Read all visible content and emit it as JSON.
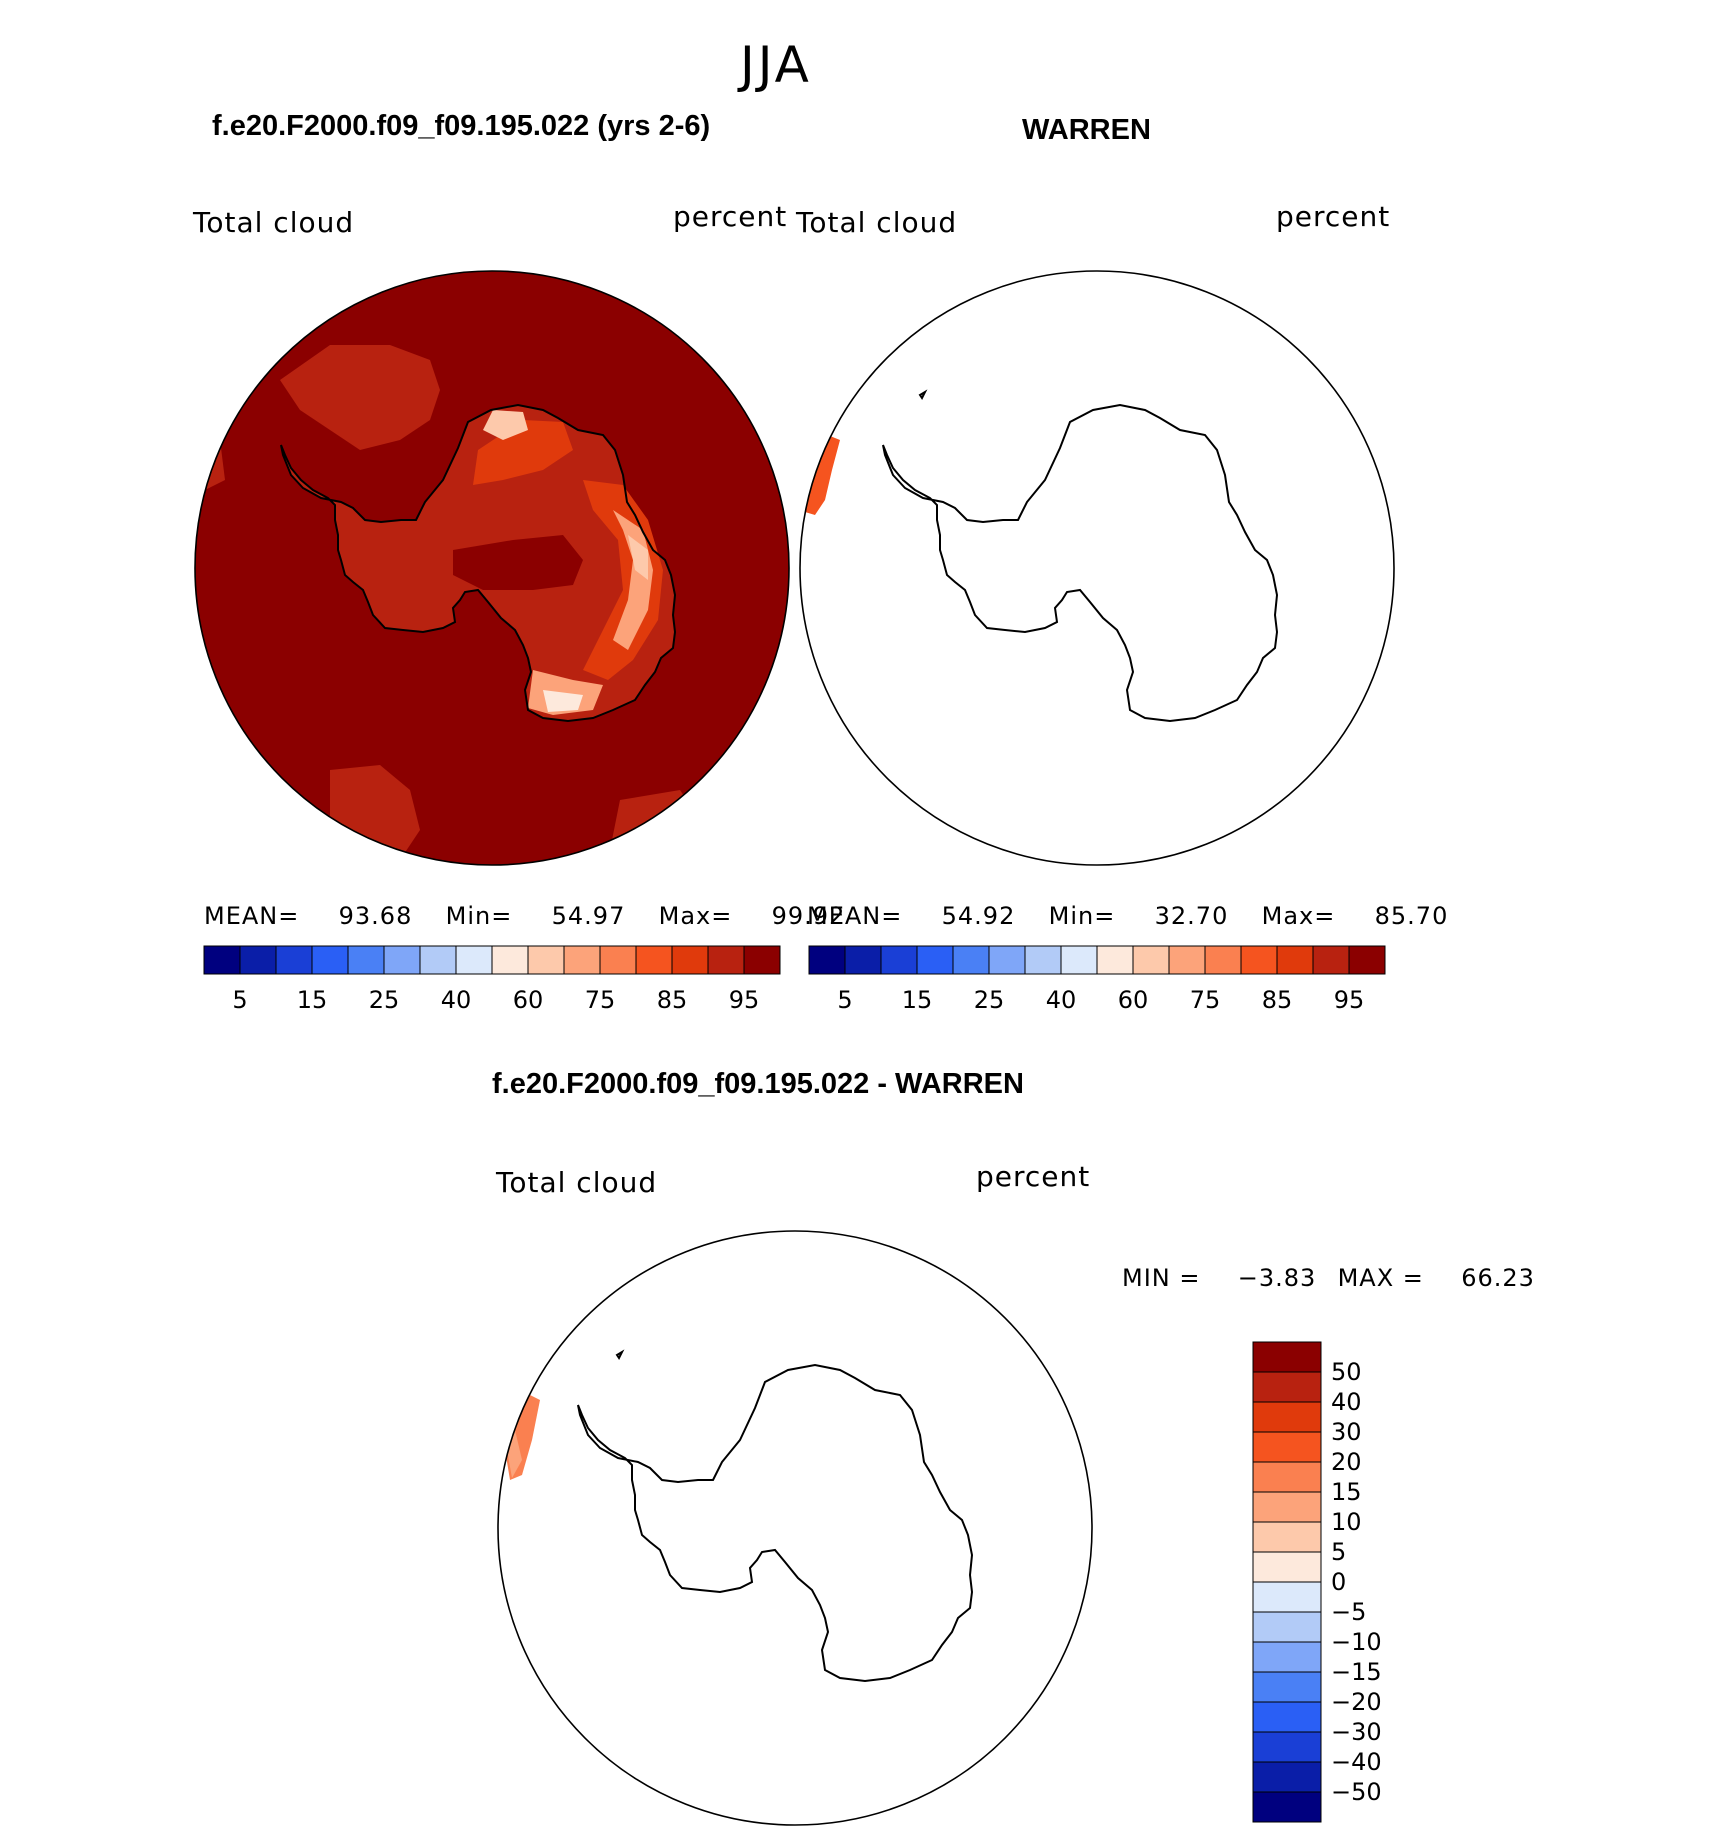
{
  "season": "JJA",
  "panels": [
    {
      "title": "f.e20.F2000.f09_f09.195.022 (yrs 2-6)",
      "variable": "Total cloud",
      "units": "percent",
      "stats": {
        "mean_label": "MEAN=",
        "mean": "93.68",
        "min_label": "Min=",
        "min": "54.97",
        "max_label": "Max=",
        "max": "99.92"
      }
    },
    {
      "title": "WARREN",
      "variable": "Total cloud",
      "units": "percent",
      "stats": {
        "mean_label": "MEAN=",
        "mean": "54.92",
        "min_label": "Min=",
        "min": "32.70",
        "max_label": "Max=",
        "max": "85.70"
      }
    },
    {
      "title": "f.e20.F2000.f09_f09.195.022 - WARREN",
      "variable": "Total cloud",
      "units": "percent",
      "stats": {
        "min_label": "MIN =",
        "min": "−3.83",
        "max_label": "MAX =",
        "max": "66.23"
      }
    }
  ],
  "abs_colorbar": {
    "colors": [
      "#00007f",
      "#0a1ea8",
      "#1a3fd6",
      "#2a5ff5",
      "#4a80f5",
      "#7fa6f8",
      "#b2cbf7",
      "#dce9fb",
      "#fde9dc",
      "#fdc9ab",
      "#fca37a",
      "#fa8050",
      "#f5541f",
      "#e03a0c",
      "#b82210",
      "#8b0000"
    ],
    "labels": [
      "5",
      "15",
      "25",
      "40",
      "60",
      "75",
      "85",
      "95"
    ]
  },
  "diff_colorbar": {
    "colors": [
      "#8b0000",
      "#b82210",
      "#e03a0c",
      "#f5541f",
      "#fa8050",
      "#fca37a",
      "#fdc9ab",
      "#fde9dc",
      "#dce9fb",
      "#b2cbf7",
      "#7fa6f8",
      "#4a80f5",
      "#2a5ff5",
      "#1a3fd6",
      "#0a1ea8",
      "#00007f"
    ],
    "labels": [
      "50",
      "40",
      "30",
      "20",
      "15",
      "10",
      "5",
      "0",
      "−5",
      "−10",
      "−15",
      "−20",
      "−30",
      "−40",
      "−50"
    ]
  },
  "map_colors": {
    "ocean_dark": "#8b0000",
    "mid": "#b82210",
    "orange": "#e03a0c",
    "light": "#fca37a",
    "lighter": "#fdc9ab",
    "palest": "#fde9dc",
    "coast": "#000000"
  }
}
